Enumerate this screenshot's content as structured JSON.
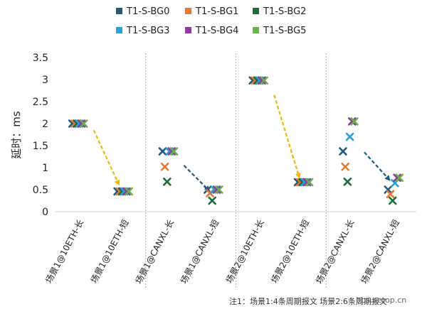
{
  "chart_data": {
    "type": "scatter",
    "ylabel": "延时：ms",
    "ylim": [
      0,
      3.5
    ],
    "yticks": [
      0,
      0.5,
      1,
      1.5,
      2,
      2.5,
      3,
      3.5
    ],
    "ytick_labels": [
      "0",
      "0.5",
      "1",
      "1.5",
      "2",
      "2.5",
      "3",
      "3.5"
    ],
    "categories": [
      "场景1@10ETH-长",
      "场景1@10ETH-短",
      "场景1@CANXL-长",
      "场景1@CANXL-短",
      "场景2@10ETH-长",
      "场景2@10ETH-短",
      "场景2@CANXL-长",
      "场景2@CANXL-短"
    ],
    "legend_placement": "top",
    "series": [
      {
        "name": "T1-S-BG0",
        "color": "#1f5a7f",
        "values": [
          2.0,
          0.46,
          1.37,
          0.5,
          2.98,
          0.67,
          1.37,
          0.5
        ]
      },
      {
        "name": "T1-S-BG1",
        "color": "#e07b39",
        "values": [
          2.0,
          0.46,
          1.02,
          0.42,
          2.98,
          0.67,
          1.02,
          0.4
        ]
      },
      {
        "name": "T1-S-BG2",
        "color": "#1e6b3a",
        "values": [
          2.0,
          0.46,
          0.68,
          0.25,
          2.98,
          0.67,
          0.68,
          0.25
        ]
      },
      {
        "name": "T1-S-BG3",
        "color": "#2aa1d6",
        "values": [
          2.0,
          0.46,
          1.37,
          0.5,
          2.98,
          0.67,
          1.7,
          0.65
        ]
      },
      {
        "name": "T1-S-BG4",
        "color": "#8e3c99",
        "values": [
          2.0,
          0.46,
          1.37,
          0.5,
          2.98,
          0.67,
          2.05,
          0.77
        ]
      },
      {
        "name": "T1-S-BG5",
        "color": "#6ab04c",
        "values": [
          2.0,
          0.46,
          1.37,
          0.5,
          2.98,
          0.67,
          2.05,
          0.77
        ]
      }
    ],
    "arrows": [
      {
        "from": [
          0,
          1.85
        ],
        "to": [
          1,
          0.62
        ],
        "color": "#f2b705"
      },
      {
        "from": [
          2,
          1.05
        ],
        "to": [
          3,
          0.48
        ],
        "color": "#1f5a7f"
      },
      {
        "from": [
          4,
          2.65
        ],
        "to": [
          5,
          0.78
        ],
        "color": "#f2b705"
      },
      {
        "from": [
          6,
          1.35
        ],
        "to": [
          7,
          0.72
        ],
        "color": "#1f5a7f"
      }
    ],
    "grid": false,
    "group_separators": true
  },
  "footer": {
    "note": "注1：场景1:4条周期报文 场景2:6条周期报文",
    "watermark": "bbs.eetop.cn"
  }
}
